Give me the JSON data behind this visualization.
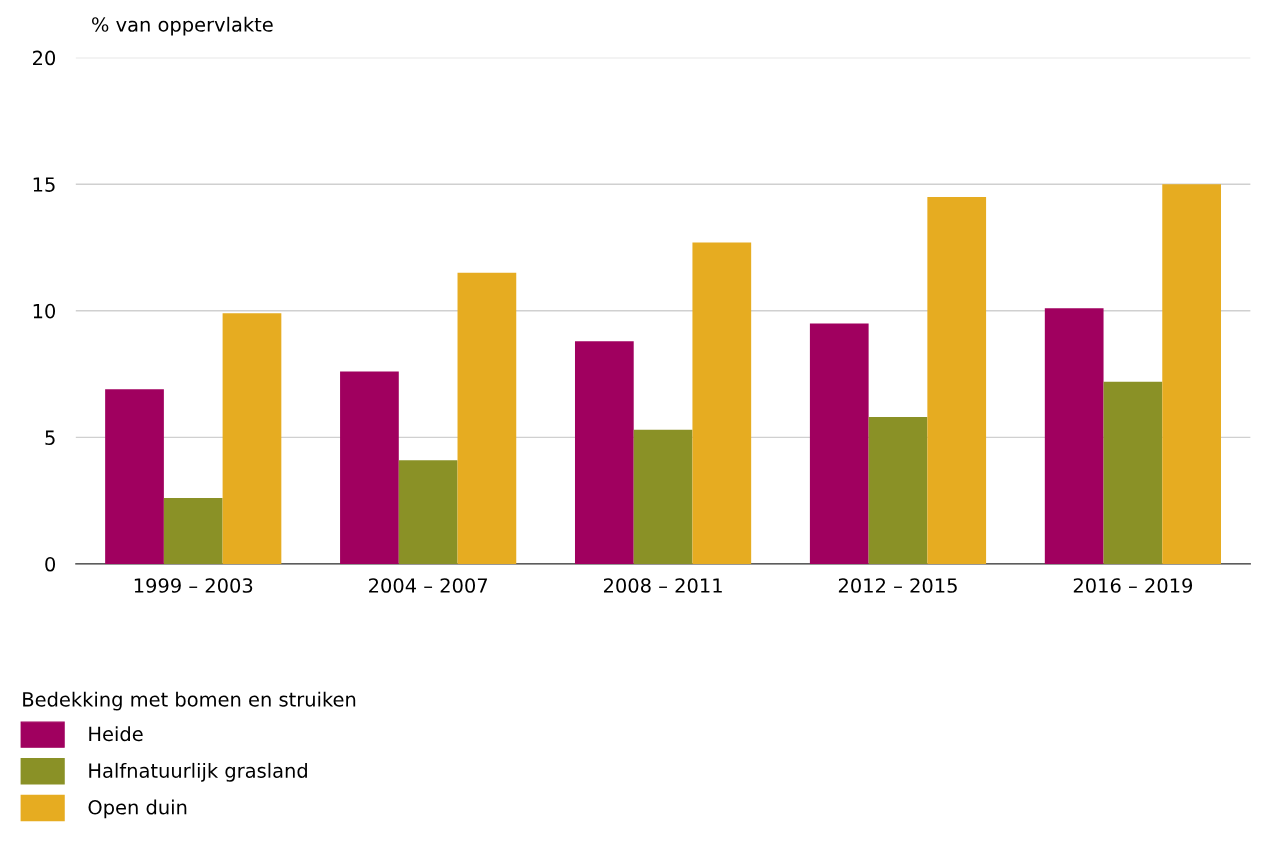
{
  "chart_data": {
    "type": "bar",
    "ylabel": "% van oppervlakte",
    "legend_title": "Bedekking met bomen en struiken",
    "categories": [
      "1999 – 2003",
      "2004 – 2007",
      "2008 – 2011",
      "2012 – 2015",
      "2016 – 2019"
    ],
    "series": [
      {
        "name": "Heide",
        "color": "#a0005f",
        "values": [
          6.9,
          7.6,
          8.8,
          9.5,
          10.1
        ]
      },
      {
        "name": "Halfnatuurlijk grasland",
        "color": "#8a9126",
        "values": [
          2.6,
          4.1,
          5.3,
          5.8,
          7.2
        ]
      },
      {
        "name": "Open duin",
        "color": "#e6ac21",
        "values": [
          9.9,
          11.5,
          12.7,
          14.5,
          15.0
        ]
      }
    ],
    "ylim": [
      0,
      20
    ],
    "yticks": [
      0,
      5,
      10,
      15,
      20
    ],
    "grid": "y",
    "legend": "bottom left"
  }
}
